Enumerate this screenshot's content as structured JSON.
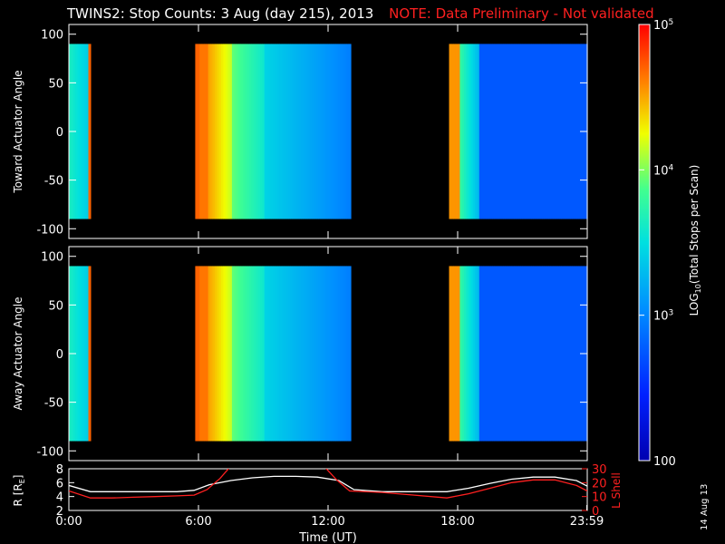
{
  "title": {
    "main": "TWINS2: Stop Counts:  3 Aug (day 215), 2013",
    "note": "NOTE: Data Preliminary - Not validated"
  },
  "datestamp": "14 Aug 13",
  "colors": {
    "background": "#000000",
    "axes": "#ffffff",
    "note": "#ff2020",
    "r_line": "#ffffff",
    "lshell_line": "#ff2020"
  },
  "chart_data": [
    {
      "type": "heatmap",
      "ylabel": "Toward Actuator Angle",
      "ylim": [
        -110,
        110
      ],
      "y_ticks": [
        "100",
        "50",
        "0",
        "-50",
        "-100"
      ],
      "x_range_hours": [
        0,
        24
      ],
      "data_segments_hours": [
        [
          0.0,
          0.9
        ],
        [
          5.85,
          13.0
        ],
        [
          17.6,
          23.99
        ]
      ]
    },
    {
      "type": "heatmap",
      "ylabel": "Away Actuator Angle",
      "ylim": [
        -110,
        110
      ],
      "y_ticks": [
        "100",
        "50",
        "0",
        "-50",
        "-100"
      ],
      "x_range_hours": [
        0,
        24
      ],
      "data_segments_hours": [
        [
          0.0,
          0.9
        ],
        [
          5.85,
          13.0
        ],
        [
          17.6,
          23.99
        ]
      ]
    },
    {
      "type": "line",
      "xlabel": "Time (UT)",
      "x_ticks": [
        "0:00",
        "6:00",
        "12:00",
        "18:00",
        "23:59"
      ],
      "ylabel_left": "R [RE]",
      "ylim_left": [
        2,
        8
      ],
      "y_ticks_left": [
        "8",
        "6",
        "4",
        "2"
      ],
      "ylabel_right": "L Shell",
      "ylim_right": [
        0,
        30
      ],
      "y_ticks_right": [
        "30",
        "20",
        "10",
        "0"
      ],
      "series": [
        {
          "axis": "left",
          "x": [
            0,
            1,
            2,
            3,
            4,
            5,
            5.8,
            6.5,
            7.5,
            8.5,
            9.5,
            10.5,
            11.5,
            12.5,
            13.2,
            14.5,
            16,
            17.5,
            18.5,
            19.5,
            20.5,
            21.5,
            22.5,
            23.5,
            24
          ],
          "y": [
            5.6,
            4.7,
            4.7,
            4.7,
            4.7,
            4.7,
            4.9,
            5.7,
            6.3,
            6.7,
            6.9,
            6.9,
            6.8,
            6.3,
            5.0,
            4.7,
            4.7,
            4.7,
            5.2,
            5.9,
            6.5,
            6.8,
            6.8,
            6.3,
            5.5
          ]
        },
        {
          "axis": "right",
          "x": [
            0,
            1,
            2,
            3,
            4,
            5,
            5.8,
            6.4,
            7.0,
            7.5
          ],
          "y": [
            14,
            9,
            9,
            9.5,
            10,
            10.5,
            11,
            15,
            23,
            32
          ]
        },
        {
          "axis": "right",
          "x": [
            11.8,
            12.4,
            13.0,
            14.5,
            16,
            17.5,
            18.5,
            19.5,
            20.5,
            21.5,
            22.5,
            23.5,
            24
          ],
          "y": [
            32,
            22,
            14,
            13,
            11,
            9,
            12,
            16,
            20,
            22,
            22,
            18,
            14
          ]
        }
      ]
    }
  ],
  "colorbar": {
    "label": "LOG10(Total Stops per Scan)",
    "tick_labels": [
      "10^5",
      "10^4",
      "10^3",
      "100"
    ],
    "range": [
      100,
      100000
    ],
    "scale": "log"
  }
}
